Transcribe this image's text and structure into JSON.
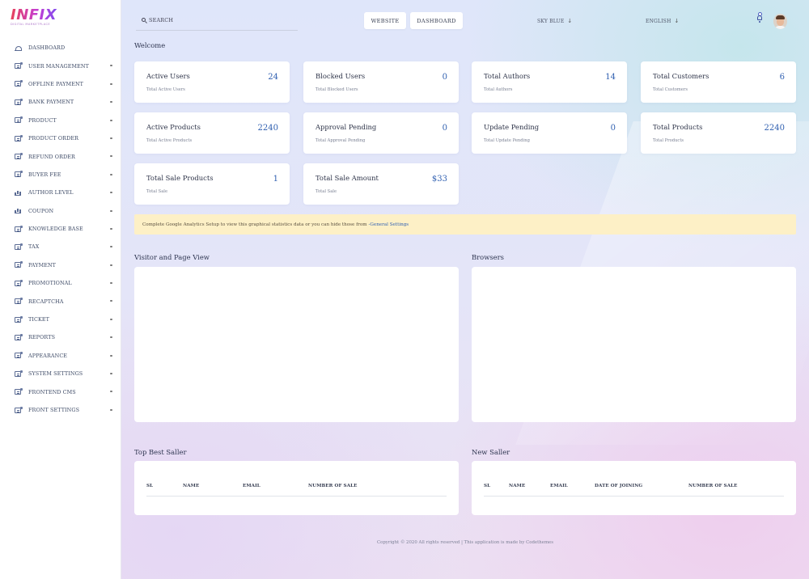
{
  "brand": {
    "logo": "INFIX",
    "tagline": "DIGITAL MARKETPLACE"
  },
  "sidebar": {
    "items": [
      {
        "label": "DASHBOARD",
        "icon": "dashboard-icon"
      },
      {
        "label": "USER MANAGEMENT",
        "icon": "document-icon"
      },
      {
        "label": "OFFLINE PAYMENT",
        "icon": "document-icon"
      },
      {
        "label": "BANK PAYMENT",
        "icon": "document-icon"
      },
      {
        "label": "PRODUCT",
        "icon": "document-icon"
      },
      {
        "label": "PRODUCT ORDER",
        "icon": "document-icon"
      },
      {
        "label": "REFUND ORDER",
        "icon": "document-icon"
      },
      {
        "label": "BUYER FEE",
        "icon": "document-icon"
      },
      {
        "label": "AUTHOR LEVEL",
        "icon": "bar-chart-icon"
      },
      {
        "label": "COUPON",
        "icon": "bar-chart-icon"
      },
      {
        "label": "KNOWLEDGE BASE",
        "icon": "document-icon"
      },
      {
        "label": "TAX",
        "icon": "document-icon"
      },
      {
        "label": "PAYMENT",
        "icon": "document-icon"
      },
      {
        "label": "PROMOTIONAL",
        "icon": "document-icon"
      },
      {
        "label": "RECAPTCHA",
        "icon": "document-icon"
      },
      {
        "label": "TICKET",
        "icon": "document-icon"
      },
      {
        "label": "REPORTS",
        "icon": "document-icon"
      },
      {
        "label": "APPEARANCE",
        "icon": "document-icon"
      },
      {
        "label": "SYSTEM SETTINGS",
        "icon": "document-icon"
      },
      {
        "label": "FRONTEND CMS",
        "icon": "document-icon"
      },
      {
        "label": "FRONT SETTINGS",
        "icon": "document-icon"
      }
    ]
  },
  "topbar": {
    "search_placeholder": "SEARCH",
    "website_label": "WEBSITE",
    "dashboard_label": "DASHBOARD",
    "theme": "SKY BLUE",
    "language": "ENGLISH",
    "arrow": "↓"
  },
  "welcome": "Welcome",
  "cards": [
    {
      "title": "Active Users",
      "sub": "Total Active Users",
      "value": "24"
    },
    {
      "title": "Blocked Users",
      "sub": "Total Blocked Users",
      "value": "0"
    },
    {
      "title": "Total Authors",
      "sub": "Total Authors",
      "value": "14"
    },
    {
      "title": "Total Customers",
      "sub": "Total Customers",
      "value": "6"
    },
    {
      "title": "Active Products",
      "sub": "Total Active Products",
      "value": "2240"
    },
    {
      "title": "Approval Pending",
      "sub": "Total Approval Pending",
      "value": "0"
    },
    {
      "title": "Update Pending",
      "sub": "Total Update Pending",
      "value": "0"
    },
    {
      "title": "Total Products",
      "sub": "Total Products",
      "value": "2240"
    },
    {
      "title": "Total Sale Products",
      "sub": "Total Sale",
      "value": "1"
    },
    {
      "title": "Total Sale Amount",
      "sub": "Total Sale",
      "value": "$33"
    }
  ],
  "notice": {
    "text": "Complete Google Analytics Setup to view this graphical statistics data or you can hide those from",
    "link": "-General Settings"
  },
  "sections": {
    "visitor": "Visitor and Page View",
    "browsers": "Browsers",
    "top_seller": "Top Best Saller",
    "new_seller": "New Saller"
  },
  "top_seller_table": {
    "headers": [
      "SL",
      "NAME",
      "EMAIL",
      "NUMBER OF SALE"
    ]
  },
  "new_seller_table": {
    "headers": [
      "SL",
      "NAME",
      "EMAIL",
      "DATE OF JOINING",
      "NUMBER OF SALE"
    ]
  },
  "footer": "Copyright © 2020 All rights reserved | This application is made by Codethemes",
  "colors": {
    "accent": "#2f5fb0",
    "notice_bg": "#fdf0c6",
    "sidebar_text": "#3d4a66"
  }
}
